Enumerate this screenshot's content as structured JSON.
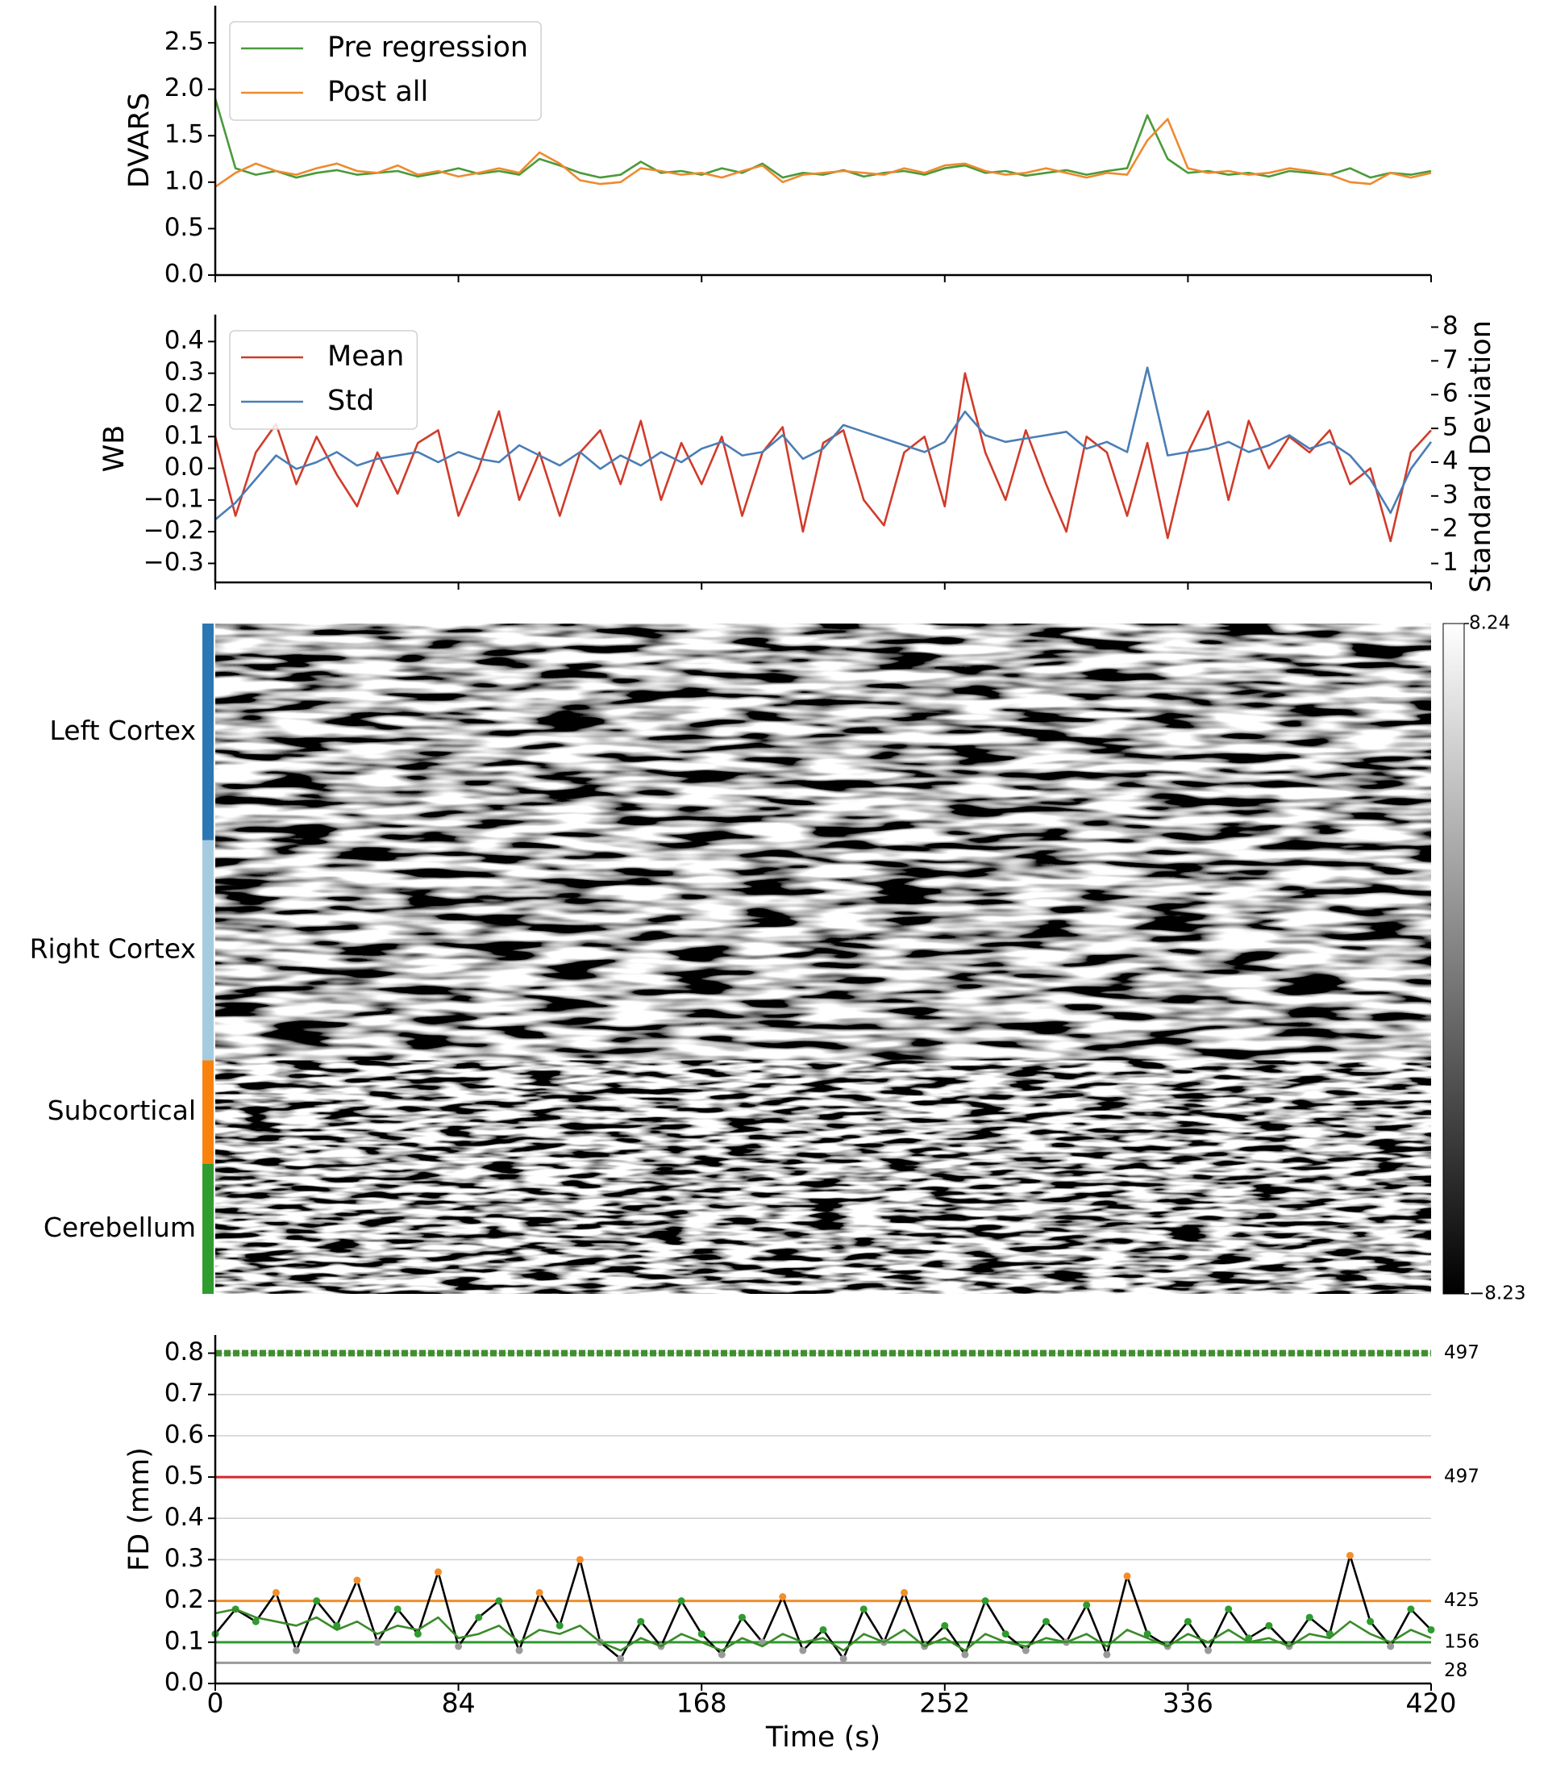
{
  "chart_data": [
    {
      "type": "line",
      "ylabel": "DVARS",
      "x": [
        0,
        7,
        14,
        21,
        28,
        35,
        42,
        49,
        56,
        63,
        70,
        77,
        84,
        91,
        98,
        105,
        112,
        119,
        126,
        133,
        140,
        147,
        154,
        161,
        168,
        175,
        182,
        189,
        196,
        203,
        210,
        217,
        224,
        231,
        238,
        245,
        252,
        259,
        266,
        273,
        280,
        287,
        294,
        301,
        308,
        315,
        322,
        329,
        336,
        343,
        350,
        357,
        364,
        371,
        378,
        385,
        392,
        399,
        406,
        413,
        420
      ],
      "xlim": [
        0,
        420
      ],
      "xticks": [
        0,
        84,
        168,
        252,
        336,
        420
      ],
      "show_xtick_labels": false,
      "ylim": [
        0,
        2.9
      ],
      "yticks": [
        {
          "value": 0,
          "label": "0.0"
        },
        0.5,
        {
          "value": 1,
          "label": "1.0"
        },
        1.5,
        {
          "value": 2,
          "label": "2.0"
        },
        2.5
      ],
      "legend": "upper left",
      "spines": [
        "left",
        "bottom"
      ],
      "series": [
        {
          "name": "Pre regression",
          "color": "#4a9a3a",
          "values": [
            1.9,
            1.15,
            1.08,
            1.12,
            1.05,
            1.1,
            1.13,
            1.08,
            1.1,
            1.12,
            1.06,
            1.1,
            1.15,
            1.09,
            1.12,
            1.08,
            1.25,
            1.18,
            1.1,
            1.05,
            1.08,
            1.22,
            1.1,
            1.12,
            1.08,
            1.15,
            1.1,
            1.2,
            1.05,
            1.1,
            1.08,
            1.13,
            1.06,
            1.1,
            1.12,
            1.08,
            1.15,
            1.18,
            1.1,
            1.12,
            1.07,
            1.1,
            1.13,
            1.08,
            1.12,
            1.15,
            1.72,
            1.25,
            1.1,
            1.12,
            1.08,
            1.1,
            1.06,
            1.12,
            1.1,
            1.08,
            1.15,
            1.05,
            1.1,
            1.08,
            1.12
          ]
        },
        {
          "name": "Post all",
          "color": "#ee8a2e",
          "values": [
            0.95,
            1.1,
            1.2,
            1.12,
            1.08,
            1.15,
            1.2,
            1.12,
            1.1,
            1.18,
            1.08,
            1.12,
            1.06,
            1.1,
            1.15,
            1.1,
            1.32,
            1.2,
            1.02,
            0.98,
            1.0,
            1.15,
            1.12,
            1.08,
            1.1,
            1.05,
            1.12,
            1.18,
            1.0,
            1.08,
            1.1,
            1.12,
            1.1,
            1.08,
            1.15,
            1.1,
            1.18,
            1.2,
            1.12,
            1.08,
            1.1,
            1.15,
            1.1,
            1.05,
            1.1,
            1.08,
            1.45,
            1.68,
            1.15,
            1.1,
            1.12,
            1.08,
            1.1,
            1.15,
            1.12,
            1.08,
            1.0,
            0.98,
            1.1,
            1.05,
            1.1
          ]
        }
      ]
    },
    {
      "type": "line",
      "ylabel": "WB",
      "y2label": "Standard Deviation",
      "x": [
        0,
        7,
        14,
        21,
        28,
        35,
        42,
        49,
        56,
        63,
        70,
        77,
        84,
        91,
        98,
        105,
        112,
        119,
        126,
        133,
        140,
        147,
        154,
        161,
        168,
        175,
        182,
        189,
        196,
        203,
        210,
        217,
        224,
        231,
        238,
        245,
        252,
        259,
        266,
        273,
        280,
        287,
        294,
        301,
        308,
        315,
        322,
        329,
        336,
        343,
        350,
        357,
        364,
        371,
        378,
        385,
        392,
        399,
        406,
        413,
        420
      ],
      "xlim": [
        0,
        420
      ],
      "xticks": [
        0,
        84,
        168,
        252,
        336,
        420
      ],
      "show_xtick_labels": false,
      "ylim": [
        -0.36,
        0.485
      ],
      "yticks": [
        {
          "value": -0.3,
          "label": "−0.3"
        },
        {
          "value": -0.2,
          "label": "−0.2"
        },
        {
          "value": -0.1,
          "label": "−0.1"
        },
        {
          "value": 0,
          "label": "0.0"
        },
        0.1,
        0.2,
        0.3,
        0.4
      ],
      "y2lim": [
        0.44,
        8.37
      ],
      "y2ticks": [
        1,
        2,
        3,
        4,
        5,
        6,
        7,
        8
      ],
      "legend": "upper left",
      "spines": [
        "left",
        "bottom"
      ],
      "series": [
        {
          "name": "Mean",
          "color": "#d03b2a",
          "values": [
            0.1,
            -0.15,
            0.05,
            0.14,
            -0.05,
            0.1,
            -0.02,
            -0.12,
            0.05,
            -0.08,
            0.08,
            0.12,
            -0.15,
            0.0,
            0.18,
            -0.1,
            0.05,
            -0.15,
            0.05,
            0.12,
            -0.05,
            0.15,
            -0.1,
            0.08,
            -0.05,
            0.1,
            -0.15,
            0.05,
            0.13,
            -0.2,
            0.08,
            0.12,
            -0.1,
            -0.18,
            0.05,
            0.1,
            -0.12,
            0.3,
            0.05,
            -0.1,
            0.12,
            -0.05,
            -0.2,
            0.1,
            0.05,
            -0.15,
            0.08,
            -0.22,
            0.05,
            0.18,
            -0.1,
            0.15,
            0.0,
            0.1,
            0.05,
            0.12,
            -0.05,
            0.0,
            -0.23,
            0.05,
            0.12
          ]
        },
        {
          "name": "Std",
          "color": "#4a7db5",
          "axis": "y2",
          "values": [
            2.3,
            2.8,
            3.5,
            4.2,
            3.8,
            4.0,
            4.3,
            3.9,
            4.1,
            4.2,
            4.3,
            4.0,
            4.3,
            4.1,
            4.0,
            4.5,
            4.2,
            3.9,
            4.3,
            3.8,
            4.2,
            3.9,
            4.3,
            4.0,
            4.4,
            4.6,
            4.2,
            4.3,
            4.8,
            4.1,
            4.4,
            5.1,
            4.9,
            4.7,
            4.5,
            4.3,
            4.6,
            5.5,
            4.8,
            4.6,
            4.7,
            4.8,
            4.9,
            4.4,
            4.6,
            4.3,
            6.8,
            4.2,
            4.3,
            4.4,
            4.6,
            4.3,
            4.5,
            4.8,
            4.4,
            4.6,
            4.2,
            3.5,
            2.5,
            3.8,
            4.6
          ]
        }
      ]
    },
    {
      "type": "heatmap",
      "groups": [
        {
          "name": "Left Cortex",
          "color": "#2a77b4",
          "size": 32.3
        },
        {
          "name": "Right Cortex",
          "color": "#a6cbe0",
          "size": 32.8
        },
        {
          "name": "Subcortical",
          "color": "#f9820e",
          "size": 15.4
        },
        {
          "name": "Cerebellum",
          "color": "#2e9c2e",
          "size": 19.4
        }
      ],
      "colorbar_lim": [
        -8.23,
        8.24
      ],
      "colorbar_ticks": [
        {
          "value": -8.23,
          "label": "−8.23"
        },
        8.24
      ]
    },
    {
      "type": "line",
      "ylabel": "FD (mm)",
      "xlabel": "Time (s)",
      "x": [
        0,
        7,
        14,
        21,
        28,
        35,
        42,
        49,
        56,
        63,
        70,
        77,
        84,
        91,
        98,
        105,
        112,
        119,
        126,
        133,
        140,
        147,
        154,
        161,
        168,
        175,
        182,
        189,
        196,
        203,
        210,
        217,
        224,
        231,
        238,
        245,
        252,
        259,
        266,
        273,
        280,
        287,
        294,
        301,
        308,
        315,
        322,
        329,
        336,
        343,
        350,
        357,
        364,
        371,
        378,
        385,
        392,
        399,
        406,
        413,
        420
      ],
      "xlim": [
        0,
        420
      ],
      "xticks": [
        0,
        84,
        168,
        252,
        336,
        420
      ],
      "show_xtick_labels": true,
      "ylim": [
        0,
        0.844
      ],
      "yticks": [
        {
          "value": 0,
          "label": "0.0"
        },
        0.1,
        0.2,
        0.3,
        0.4,
        0.5,
        0.6,
        0.7,
        0.8
      ],
      "grid": true,
      "spines": [
        "left",
        "bottom"
      ],
      "point_markers": true,
      "thresholds": [
        {
          "value": 0.8,
          "color": "#3f8f2f",
          "label_color": "#000000",
          "count": 497
        },
        {
          "value": 0.5,
          "color": "#d62728",
          "label_color": "#d62728",
          "count": 497
        },
        {
          "value": 0.2,
          "color": "#f28e2b",
          "label_color": "#f28e2b",
          "count": 425
        },
        {
          "value": 0.1,
          "color": "#2f9a2f",
          "label_color": "#2f9a2f",
          "count": 156
        },
        {
          "value": 0.05,
          "color": "#999999",
          "label_color": "#999999",
          "count": 28
        }
      ],
      "series": [
        {
          "color": "#000000",
          "values": [
            0.12,
            0.18,
            0.15,
            0.22,
            0.08,
            0.2,
            0.14,
            0.25,
            0.1,
            0.18,
            0.12,
            0.27,
            0.09,
            0.16,
            0.2,
            0.08,
            0.22,
            0.14,
            0.3,
            0.1,
            0.06,
            0.15,
            0.09,
            0.2,
            0.12,
            0.07,
            0.16,
            0.1,
            0.21,
            0.08,
            0.13,
            0.06,
            0.18,
            0.1,
            0.22,
            0.09,
            0.14,
            0.07,
            0.2,
            0.12,
            0.08,
            0.15,
            0.1,
            0.19,
            0.07,
            0.26,
            0.12,
            0.09,
            0.15,
            0.08,
            0.18,
            0.11,
            0.14,
            0.09,
            0.16,
            0.12,
            0.31,
            0.15,
            0.09,
            0.18,
            0.13
          ]
        },
        {
          "color": "#3a8a2a",
          "values": [
            0.17,
            0.18,
            0.16,
            0.15,
            0.14,
            0.16,
            0.13,
            0.15,
            0.12,
            0.14,
            0.13,
            0.16,
            0.11,
            0.12,
            0.14,
            0.1,
            0.13,
            0.12,
            0.14,
            0.1,
            0.08,
            0.11,
            0.09,
            0.12,
            0.1,
            0.08,
            0.11,
            0.09,
            0.12,
            0.1,
            0.11,
            0.08,
            0.12,
            0.1,
            0.13,
            0.09,
            0.11,
            0.08,
            0.12,
            0.1,
            0.09,
            0.11,
            0.1,
            0.12,
            0.09,
            0.13,
            0.11,
            0.09,
            0.12,
            0.1,
            0.13,
            0.1,
            0.11,
            0.09,
            0.12,
            0.11,
            0.15,
            0.12,
            0.1,
            0.13,
            0.11
          ]
        }
      ]
    }
  ]
}
